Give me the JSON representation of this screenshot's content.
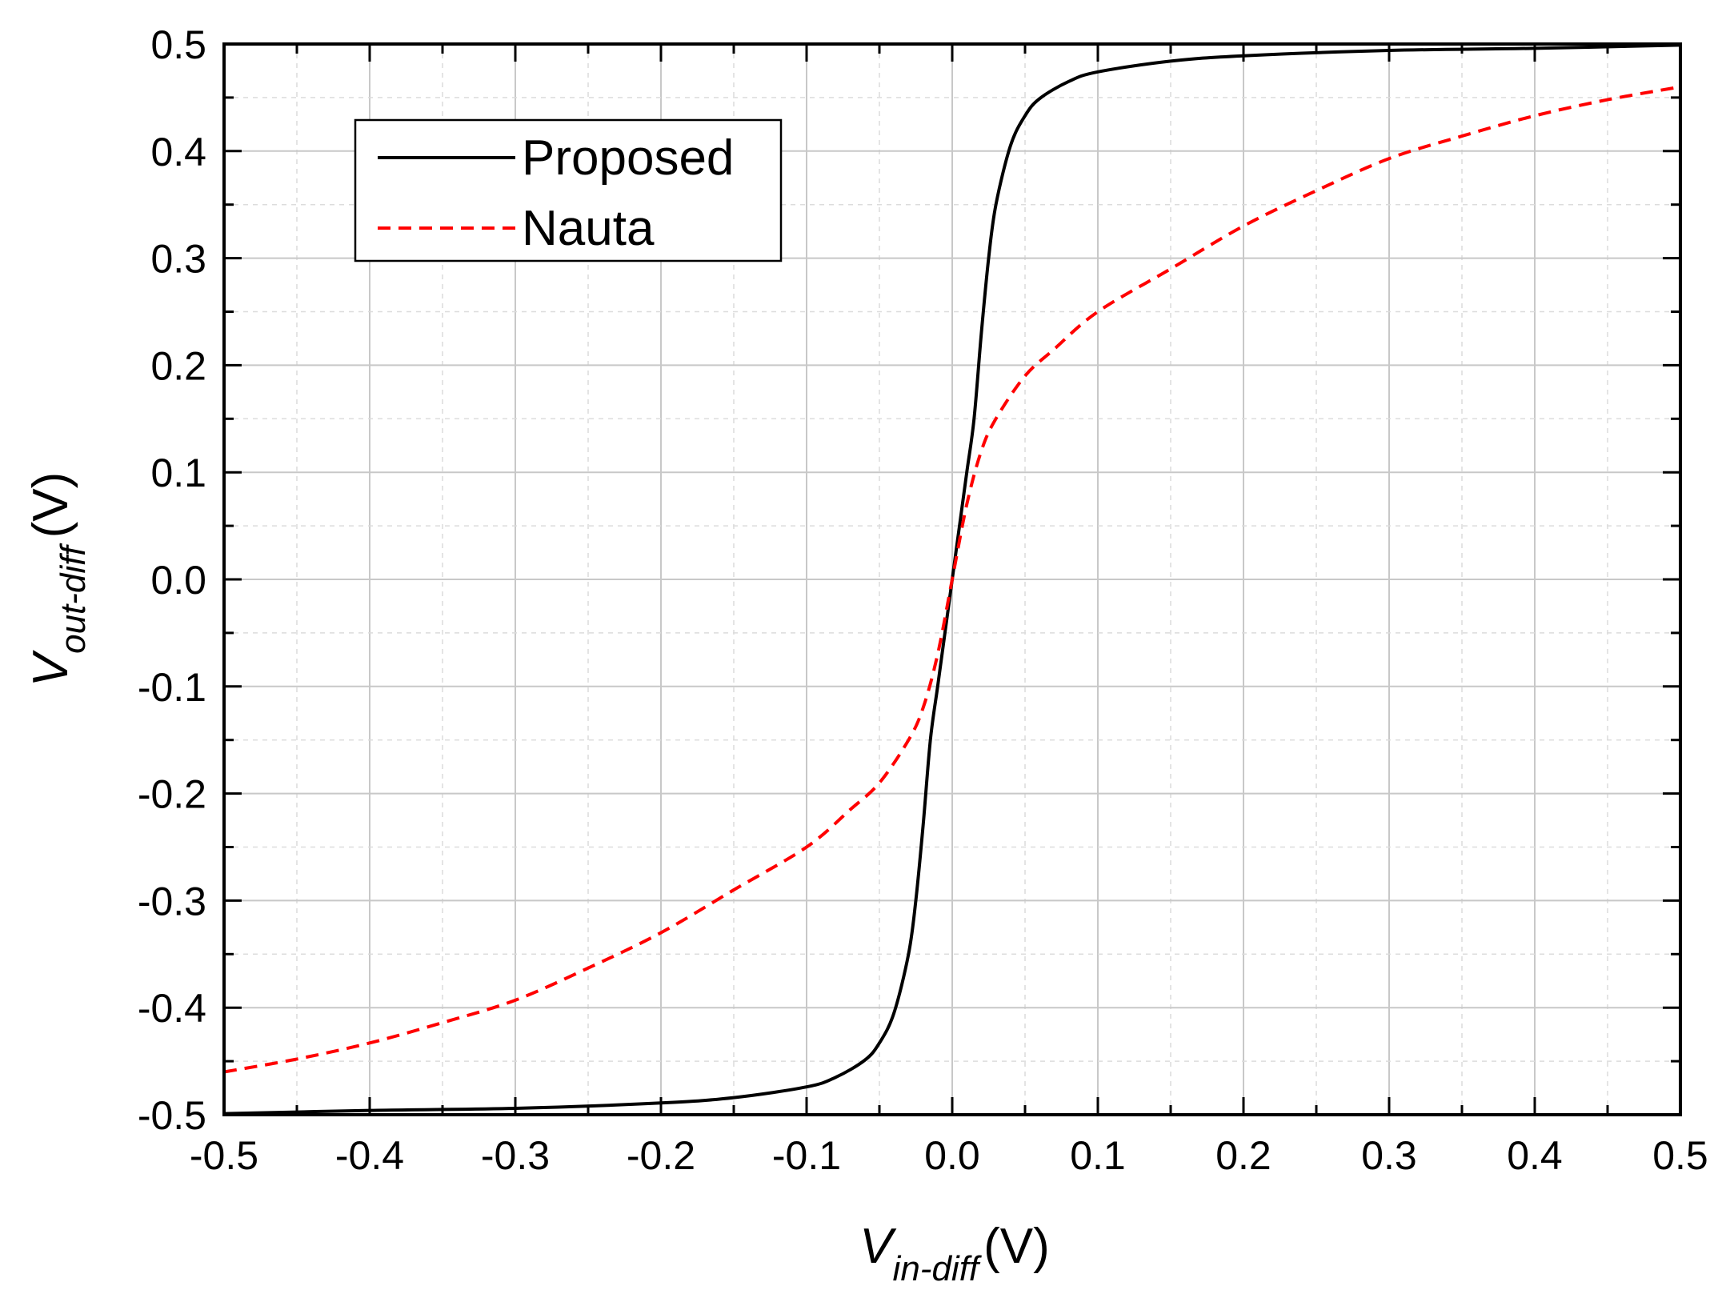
{
  "chart_data": {
    "type": "line",
    "xlabel": {
      "main": "V",
      "sub": "in-diff",
      "unit": "(V)"
    },
    "ylabel": {
      "main": "V",
      "sub": "out-diff",
      "unit": "(V)"
    },
    "xlim": [
      -0.5,
      0.5
    ],
    "ylim": [
      -0.5,
      0.5
    ],
    "xticks": [
      -0.5,
      -0.4,
      -0.3,
      -0.2,
      -0.1,
      0.0,
      0.1,
      0.2,
      0.3,
      0.4,
      0.5
    ],
    "yticks": [
      -0.5,
      -0.4,
      -0.3,
      -0.2,
      -0.1,
      0.0,
      0.1,
      0.2,
      0.3,
      0.4,
      0.5
    ],
    "xtick_labels": [
      "-0.5",
      "-0.4",
      "-0.3",
      "-0.2",
      "-0.1",
      "0.0",
      "0.1",
      "0.2",
      "0.3",
      "0.4",
      "0.5"
    ],
    "ytick_labels": [
      "-0.5",
      "-0.4",
      "-0.3",
      "-0.2",
      "-0.1",
      "0.0",
      "0.1",
      "0.2",
      "0.3",
      "0.4",
      "0.5"
    ],
    "grid": true,
    "legend_position": "top-left",
    "series": [
      {
        "name": "Proposed",
        "color": "#000000",
        "style": "solid",
        "x": [
          -0.5,
          -0.4,
          -0.3,
          -0.2,
          -0.15,
          -0.1,
          -0.08,
          -0.06,
          -0.05,
          -0.04,
          -0.03,
          -0.025,
          -0.02,
          -0.015,
          -0.01,
          -0.005,
          0.0,
          0.005,
          0.01,
          0.015,
          0.02,
          0.025,
          0.03,
          0.04,
          0.05,
          0.06,
          0.08,
          0.1,
          0.15,
          0.2,
          0.3,
          0.4,
          0.5
        ],
        "y": [
          -0.499,
          -0.496,
          -0.494,
          -0.489,
          -0.484,
          -0.474,
          -0.465,
          -0.449,
          -0.433,
          -0.405,
          -0.35,
          -0.3,
          -0.23,
          -0.15,
          -0.1,
          -0.05,
          0.0,
          0.05,
          0.1,
          0.15,
          0.23,
          0.3,
          0.35,
          0.405,
          0.433,
          0.449,
          0.465,
          0.474,
          0.484,
          0.489,
          0.494,
          0.496,
          0.499
        ]
      },
      {
        "name": "Nauta",
        "color": "#ff0000",
        "style": "dashed",
        "x": [
          -0.5,
          -0.45,
          -0.4,
          -0.35,
          -0.3,
          -0.25,
          -0.2,
          -0.15,
          -0.1,
          -0.07,
          -0.05,
          -0.03,
          -0.02,
          -0.01,
          0.0,
          0.01,
          0.02,
          0.03,
          0.05,
          0.07,
          0.1,
          0.15,
          0.2,
          0.25,
          0.3,
          0.35,
          0.4,
          0.45,
          0.5
        ],
        "y": [
          -0.46,
          -0.448,
          -0.433,
          -0.414,
          -0.393,
          -0.363,
          -0.33,
          -0.29,
          -0.25,
          -0.215,
          -0.19,
          -0.15,
          -0.12,
          -0.07,
          0.0,
          0.07,
          0.12,
          0.15,
          0.19,
          0.215,
          0.25,
          0.29,
          0.33,
          0.363,
          0.393,
          0.414,
          0.433,
          0.448,
          0.46
        ]
      }
    ]
  }
}
